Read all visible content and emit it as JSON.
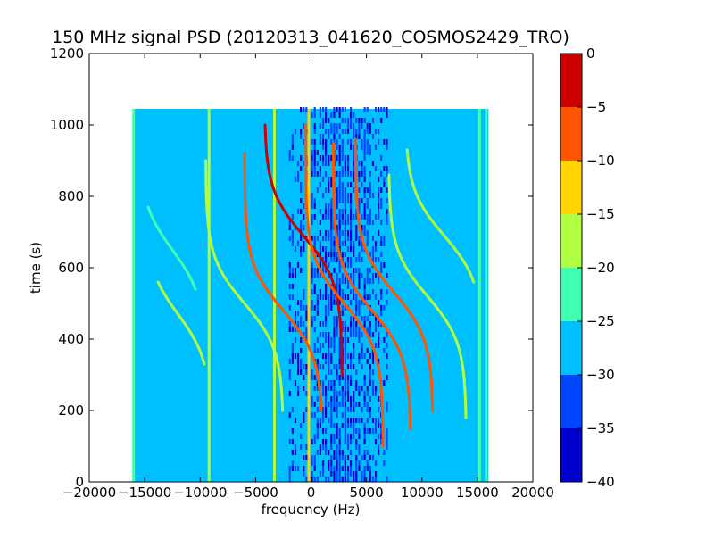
{
  "chart_data": {
    "type": "heatmap",
    "title": "150 MHz signal PSD (20120313_041620_COSMOS2429_TRO)",
    "xlabel": "frequency (Hz)",
    "ylabel": "time (s)",
    "xlim": [
      -20000,
      20000
    ],
    "ylim": [
      0,
      1200
    ],
    "data_extent": {
      "x": [
        -16000,
        16000
      ],
      "y": [
        0,
        1045
      ]
    },
    "xticks": [
      -20000,
      -15000,
      -10000,
      -5000,
      0,
      5000,
      10000,
      15000,
      20000
    ],
    "xtick_labels": [
      "−20000",
      "−15000",
      "−10000",
      "−5000",
      "0",
      "5000",
      "10000",
      "15000",
      "20000"
    ],
    "yticks": [
      0,
      200,
      400,
      600,
      800,
      1000,
      1200
    ],
    "ytick_labels": [
      "0",
      "200",
      "400",
      "600",
      "800",
      "1000",
      "1200"
    ],
    "colormap": "jet",
    "colorbar": {
      "range": [
        -40,
        0
      ],
      "ticks": [
        0,
        -5,
        -10,
        -15,
        -20,
        -25,
        -30,
        -35,
        -40
      ],
      "tick_labels": [
        "0",
        "−5",
        "−10",
        "−15",
        "−20",
        "−25",
        "−30",
        "−35",
        "−40"
      ],
      "levels": [
        {
          "from": -40,
          "to": -35,
          "color": "#0000cd"
        },
        {
          "from": -35,
          "to": -30,
          "color": "#0046ff"
        },
        {
          "from": -30,
          "to": -25,
          "color": "#00bfff"
        },
        {
          "from": -25,
          "to": -20,
          "color": "#40ffb0"
        },
        {
          "from": -20,
          "to": -15,
          "color": "#b0ff40"
        },
        {
          "from": -15,
          "to": -10,
          "color": "#ffd400"
        },
        {
          "from": -10,
          "to": -5,
          "color": "#ff5500"
        },
        {
          "from": -5,
          "to": 0,
          "color": "#cd0000"
        }
      ]
    },
    "background_level_db": -28,
    "dark_band_hz": [
      -2000,
      7000
    ],
    "vertical_lines": [
      {
        "x": -16000,
        "db": -22
      },
      {
        "x": -9200,
        "db": -17
      },
      {
        "x": -3300,
        "db": -17
      },
      {
        "x": -200,
        "db": -12
      },
      {
        "x": 15200,
        "db": -22
      },
      {
        "x": 15800,
        "db": -22
      }
    ],
    "doppler_tracks": [
      {
        "center_hz": -12000,
        "center_time_s": 470,
        "half_shift_hz": 3000,
        "time_range_s": [
          330,
          560
        ],
        "db": -20
      },
      {
        "center_hz": -12500,
        "center_time_s": 650,
        "half_shift_hz": 3000,
        "time_range_s": [
          540,
          770
        ],
        "db": -22
      },
      {
        "center_hz": -6000,
        "center_time_s": 500,
        "half_shift_hz": 3500,
        "time_range_s": [
          200,
          900
        ],
        "db": -18
      },
      {
        "center_hz": -2500,
        "center_time_s": 480,
        "half_shift_hz": 3500,
        "time_range_s": [
          200,
          920
        ],
        "db": -8
      },
      {
        "center_hz": -700,
        "center_time_s": 690,
        "half_shift_hz": 3500,
        "time_range_s": [
          300,
          1000
        ],
        "db": -5
      },
      {
        "center_hz": 3000,
        "center_time_s": 500,
        "half_shift_hz": 3500,
        "time_range_s": [
          100,
          1000
        ],
        "db": -8
      },
      {
        "center_hz": 5500,
        "center_time_s": 480,
        "half_shift_hz": 3500,
        "time_range_s": [
          150,
          950
        ],
        "db": -10
      },
      {
        "center_hz": 7500,
        "center_time_s": 530,
        "half_shift_hz": 3500,
        "time_range_s": [
          200,
          960
        ],
        "db": -10
      },
      {
        "center_hz": 10500,
        "center_time_s": 520,
        "half_shift_hz": 3500,
        "time_range_s": [
          180,
          860
        ],
        "db": -20
      },
      {
        "center_hz": 12000,
        "center_time_s": 690,
        "half_shift_hz": 3500,
        "time_range_s": [
          560,
          930
        ],
        "db": -20
      }
    ]
  }
}
